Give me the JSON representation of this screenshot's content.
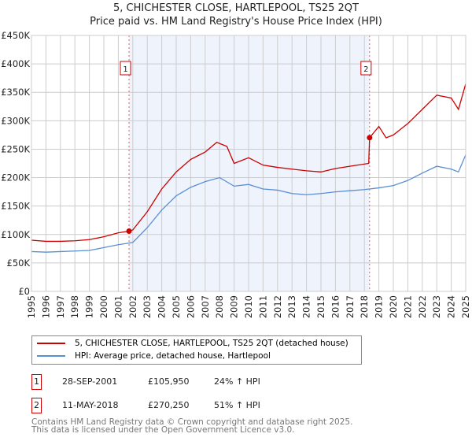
{
  "chart_data": {
    "type": "line",
    "title": "5, CHICHESTER CLOSE, HARTLEPOOL, TS25 2QT",
    "subtitle": "Price paid vs. HM Land Registry's House Price Index (HPI)",
    "xlim": [
      1995,
      2025
    ],
    "ylim": [
      0,
      450000
    ],
    "y_ticks": [
      "£0",
      "£50K",
      "£100K",
      "£150K",
      "£200K",
      "£250K",
      "£300K",
      "£350K",
      "£400K",
      "£450K"
    ],
    "x_ticks": [
      "1995",
      "1996",
      "1997",
      "1998",
      "1999",
      "2000",
      "2001",
      "2002",
      "2003",
      "2004",
      "2005",
      "2006",
      "2007",
      "2008",
      "2009",
      "2010",
      "2011",
      "2012",
      "2013",
      "2014",
      "2015",
      "2016",
      "2017",
      "2018",
      "2019",
      "2020",
      "2021",
      "2022",
      "2023",
      "2024",
      "2025"
    ],
    "grid": true,
    "series": [
      {
        "name": "5, CHICHESTER CLOSE, HARTLEPOOL, TS25 2QT (detached house)",
        "color": "#cc0000",
        "x": [
          1995,
          1996,
          1997,
          1998,
          1999,
          2000,
          2001,
          2001.74,
          2002,
          2003,
          2004,
          2005,
          2006,
          2007,
          2007.8,
          2008.5,
          2009,
          2010,
          2011,
          2012,
          2013,
          2014,
          2015,
          2016,
          2017,
          2018.3,
          2018.36,
          2019,
          2019.5,
          2020,
          2021,
          2022,
          2023,
          2024,
          2024.5,
          2025
        ],
        "y": [
          90000,
          88000,
          88000,
          89000,
          91000,
          96000,
          103000,
          105950,
          108000,
          140000,
          180000,
          210000,
          232000,
          245000,
          262000,
          255000,
          225000,
          235000,
          222000,
          218000,
          215000,
          212000,
          210000,
          216000,
          220000,
          225000,
          270250,
          290000,
          270000,
          275000,
          295000,
          320000,
          345000,
          340000,
          320000,
          365000
        ]
      },
      {
        "name": "HPI: Average price, detached house, Hartlepool",
        "color": "#5b8fd4",
        "x": [
          1995,
          1996,
          1997,
          1998,
          1999,
          2000,
          2001,
          2002,
          2003,
          2004,
          2005,
          2006,
          2007,
          2008,
          2009,
          2010,
          2011,
          2012,
          2013,
          2014,
          2015,
          2016,
          2017,
          2018,
          2019,
          2020,
          2021,
          2022,
          2023,
          2024,
          2024.5,
          2025
        ],
        "y": [
          70000,
          69000,
          70000,
          71000,
          72000,
          77000,
          82000,
          86000,
          112000,
          143000,
          168000,
          183000,
          193000,
          200000,
          185000,
          188000,
          180000,
          178000,
          172000,
          170000,
          172000,
          175000,
          177000,
          179000,
          182000,
          186000,
          195000,
          208000,
          220000,
          215000,
          210000,
          240000
        ]
      }
    ],
    "sales": [
      {
        "label": "1",
        "x": 2001.74,
        "y": 105950
      },
      {
        "label": "2",
        "x": 2018.36,
        "y": 270250
      }
    ],
    "shaded_range": [
      2001.74,
      2018.36
    ],
    "legend_placement": "below"
  },
  "table": [
    {
      "num": "1",
      "date": "28-SEP-2001",
      "price": "£105,950",
      "hpi": "24% ↑ HPI"
    },
    {
      "num": "2",
      "date": "11-MAY-2018",
      "price": "£270,250",
      "hpi": "51% ↑ HPI"
    }
  ],
  "footer": {
    "line1": "Contains HM Land Registry data © Crown copyright and database right 2025.",
    "line2": "This data is licensed under the Open Government Licence v3.0."
  }
}
